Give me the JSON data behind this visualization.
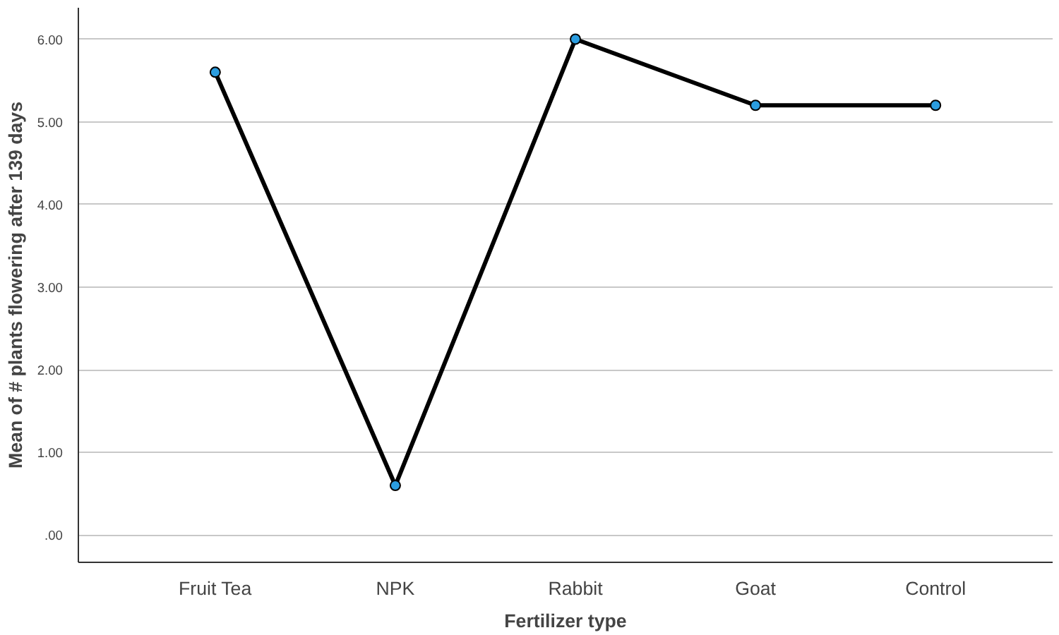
{
  "chart_data": {
    "type": "line",
    "xlabel": "Fertilizer type",
    "ylabel": "Mean of # plants flowering after 139 days",
    "categories": [
      "Fruit Tea",
      "NPK",
      "Rabbit",
      "Goat",
      "Control"
    ],
    "series": [
      {
        "color": "#000000",
        "values": [
          5.6,
          0.6,
          6.0,
          5.2,
          5.2
        ]
      }
    ],
    "ylim": [
      -0.33,
      6.38
    ],
    "yticks": [
      {
        "value": 0,
        "label": ".00"
      },
      {
        "value": 1,
        "label": "1.00"
      },
      {
        "value": 2,
        "label": "2.00"
      },
      {
        "value": 3,
        "label": "3.00"
      },
      {
        "value": 4,
        "label": "4.00"
      },
      {
        "value": 5,
        "label": "5.00"
      },
      {
        "value": 6,
        "label": "6.00"
      }
    ],
    "grid": "y",
    "marker": "circle",
    "line_style": "solid"
  }
}
